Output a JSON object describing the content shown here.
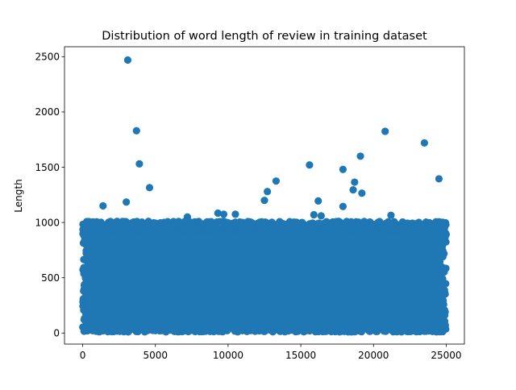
{
  "chart_data": {
    "type": "scatter",
    "title": "Distribution of word length of review in training dataset",
    "xlabel": "",
    "ylabel": "Length",
    "xlim": [
      -1250,
      26250
    ],
    "ylim": [
      -100,
      2590
    ],
    "x_ticks": [
      0,
      5000,
      10000,
      15000,
      20000,
      25000
    ],
    "x_tick_labels": [
      "0",
      "5000",
      "10000",
      "15000",
      "20000",
      "25000"
    ],
    "y_ticks": [
      0,
      500,
      1000,
      1500,
      2000,
      2500
    ],
    "y_tick_labels": [
      "0",
      "500",
      "1000",
      "1500",
      "2000",
      "2500"
    ],
    "grid": false,
    "legend": "none",
    "marker_color": "#1f77b4",
    "point_count": 25000,
    "bulk_range": {
      "x": [
        0,
        25000
      ],
      "y": [
        10,
        1010
      ]
    },
    "outliers": [
      {
        "x": 3100,
        "y": 2470
      },
      {
        "x": 3700,
        "y": 1830
      },
      {
        "x": 3900,
        "y": 1530
      },
      {
        "x": 4600,
        "y": 1315
      },
      {
        "x": 1400,
        "y": 1150
      },
      {
        "x": 3000,
        "y": 1185
      },
      {
        "x": 7200,
        "y": 1050
      },
      {
        "x": 9300,
        "y": 1085
      },
      {
        "x": 9700,
        "y": 1075
      },
      {
        "x": 10500,
        "y": 1075
      },
      {
        "x": 12500,
        "y": 1200
      },
      {
        "x": 12700,
        "y": 1280
      },
      {
        "x": 13300,
        "y": 1375
      },
      {
        "x": 15600,
        "y": 1520
      },
      {
        "x": 15900,
        "y": 1070
      },
      {
        "x": 16200,
        "y": 1195
      },
      {
        "x": 16400,
        "y": 1060
      },
      {
        "x": 17900,
        "y": 1480
      },
      {
        "x": 17900,
        "y": 1145
      },
      {
        "x": 18600,
        "y": 1295
      },
      {
        "x": 18700,
        "y": 1365
      },
      {
        "x": 19100,
        "y": 1600
      },
      {
        "x": 19200,
        "y": 1265
      },
      {
        "x": 20800,
        "y": 1825
      },
      {
        "x": 21200,
        "y": 1065
      },
      {
        "x": 23500,
        "y": 1720
      },
      {
        "x": 24500,
        "y": 1395
      }
    ]
  }
}
